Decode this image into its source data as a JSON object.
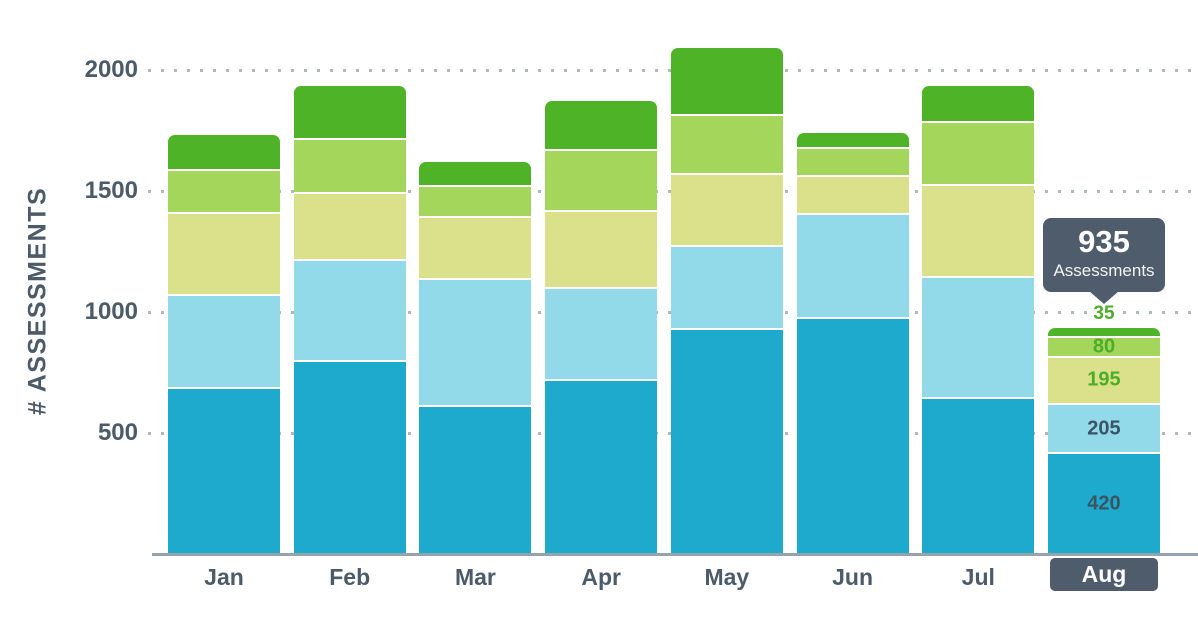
{
  "colors": {
    "slate_text": "#4C5B69",
    "panel_bg": "#4E5C6B",
    "grid_dots": "#ADB9C1",
    "axis_line": "#97A3AC"
  },
  "chart_data": {
    "type": "bar",
    "stacked": true,
    "title": "",
    "ylabel": "# ASSESSMENTS",
    "xlabel": "",
    "categories": [
      "Jan",
      "Feb",
      "Mar",
      "Apr",
      "May",
      "Jun",
      "Jul",
      "Aug"
    ],
    "yticks": [
      500,
      1000,
      1500,
      2000
    ],
    "ytick_labels": [
      "500",
      "1000",
      "1500",
      "2000"
    ],
    "ylim": [
      0,
      2290
    ],
    "grid": "dotted-horizontal",
    "legend": "none",
    "series": [
      {
        "name": "teal",
        "color": "#1EAACD",
        "values": [
          690,
          800,
          615,
          725,
          935,
          980,
          650,
          420
        ]
      },
      {
        "name": "light-blue",
        "color": "#92D9E9",
        "values": [
          385,
          420,
          525,
          380,
          340,
          430,
          500,
          205
        ]
      },
      {
        "name": "khaki",
        "color": "#DBE18A",
        "values": [
          340,
          275,
          255,
          315,
          300,
          155,
          380,
          195
        ]
      },
      {
        "name": "light-green",
        "color": "#A5D65C",
        "values": [
          175,
          225,
          130,
          255,
          245,
          115,
          260,
          80
        ]
      },
      {
        "name": "green",
        "color": "#4EB327",
        "values": [
          140,
          215,
          95,
          195,
          270,
          60,
          145,
          35
        ]
      }
    ],
    "totals": [
      1730,
      1935,
      1620,
      1870,
      2090,
      1740,
      1935,
      935
    ],
    "highlight": {
      "category": "Aug",
      "segment_labels": [
        "420",
        "205",
        "195",
        "80",
        "35"
      ],
      "segment_label_colors": [
        "#3B5464",
        "#3B5464",
        "#4BAD28",
        "#4BAD28",
        "#4BAD28"
      ],
      "total_label": {
        "value": "935",
        "caption": "Assessments"
      }
    }
  }
}
